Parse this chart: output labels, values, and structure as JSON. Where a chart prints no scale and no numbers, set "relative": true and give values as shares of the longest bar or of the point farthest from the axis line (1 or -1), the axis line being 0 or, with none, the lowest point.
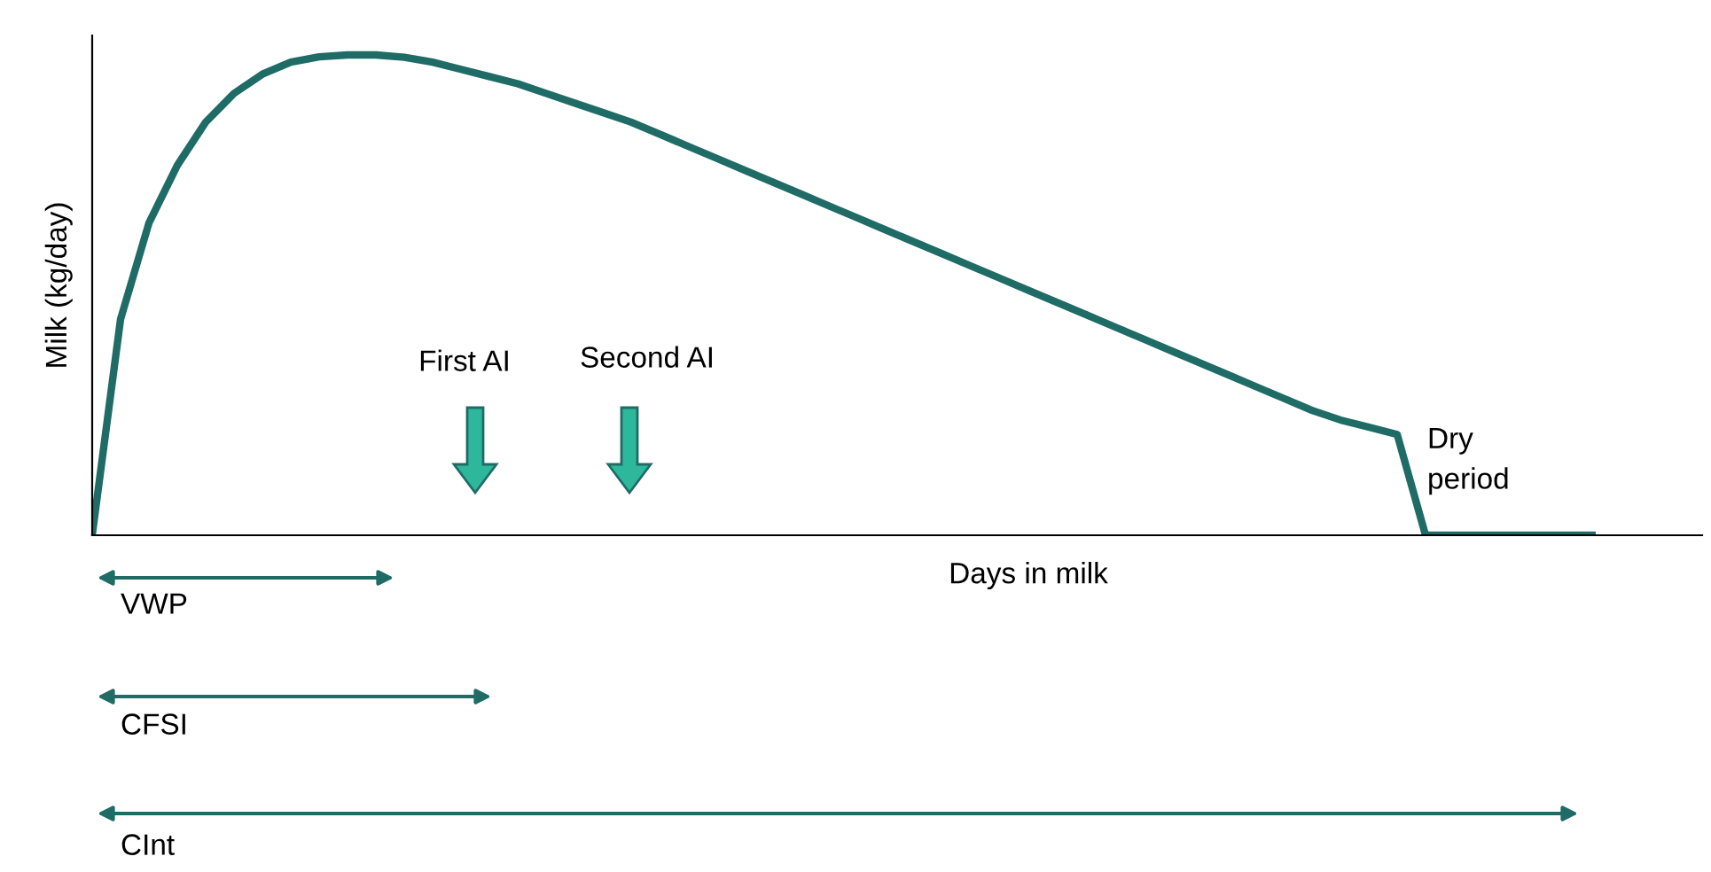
{
  "chart_data": {
    "type": "line",
    "relative": true,
    "xlabel": "Days in milk",
    "ylabel": "Milk (kg/day)",
    "color": "#1f6b66",
    "categories": [
      null,
      null,
      null,
      null,
      null,
      null,
      null,
      null,
      null,
      null,
      null,
      null,
      null,
      null,
      null,
      null,
      null,
      null,
      null,
      null,
      null,
      null,
      null,
      null,
      null,
      null,
      null,
      null,
      null,
      null,
      null,
      null,
      null,
      null,
      null,
      null,
      null,
      null,
      null,
      null,
      null,
      null,
      null,
      null,
      null,
      null,
      null,
      null,
      null,
      null,
      null,
      null,
      null,
      null
    ],
    "values": [
      0,
      0.45,
      0.65,
      0.77,
      0.86,
      0.92,
      0.96,
      0.985,
      0.996,
      1.0,
      1.0,
      0.995,
      0.985,
      0.97,
      0.955,
      0.94,
      0.92,
      0.9,
      0.88,
      0.86,
      0.835,
      0.81,
      0.785,
      0.76,
      0.735,
      0.71,
      0.685,
      0.66,
      0.635,
      0.61,
      0.585,
      0.56,
      0.535,
      0.51,
      0.485,
      0.46,
      0.435,
      0.41,
      0.385,
      0.36,
      0.335,
      0.31,
      0.285,
      0.26,
      0.24,
      0.225,
      0.21,
      0,
      0,
      0,
      0,
      0,
      0,
      0
    ],
    "annotations": [
      "First AI",
      "Second AI",
      "Dry\nperiod",
      "VWP",
      "CFSI",
      "CInt"
    ]
  }
}
